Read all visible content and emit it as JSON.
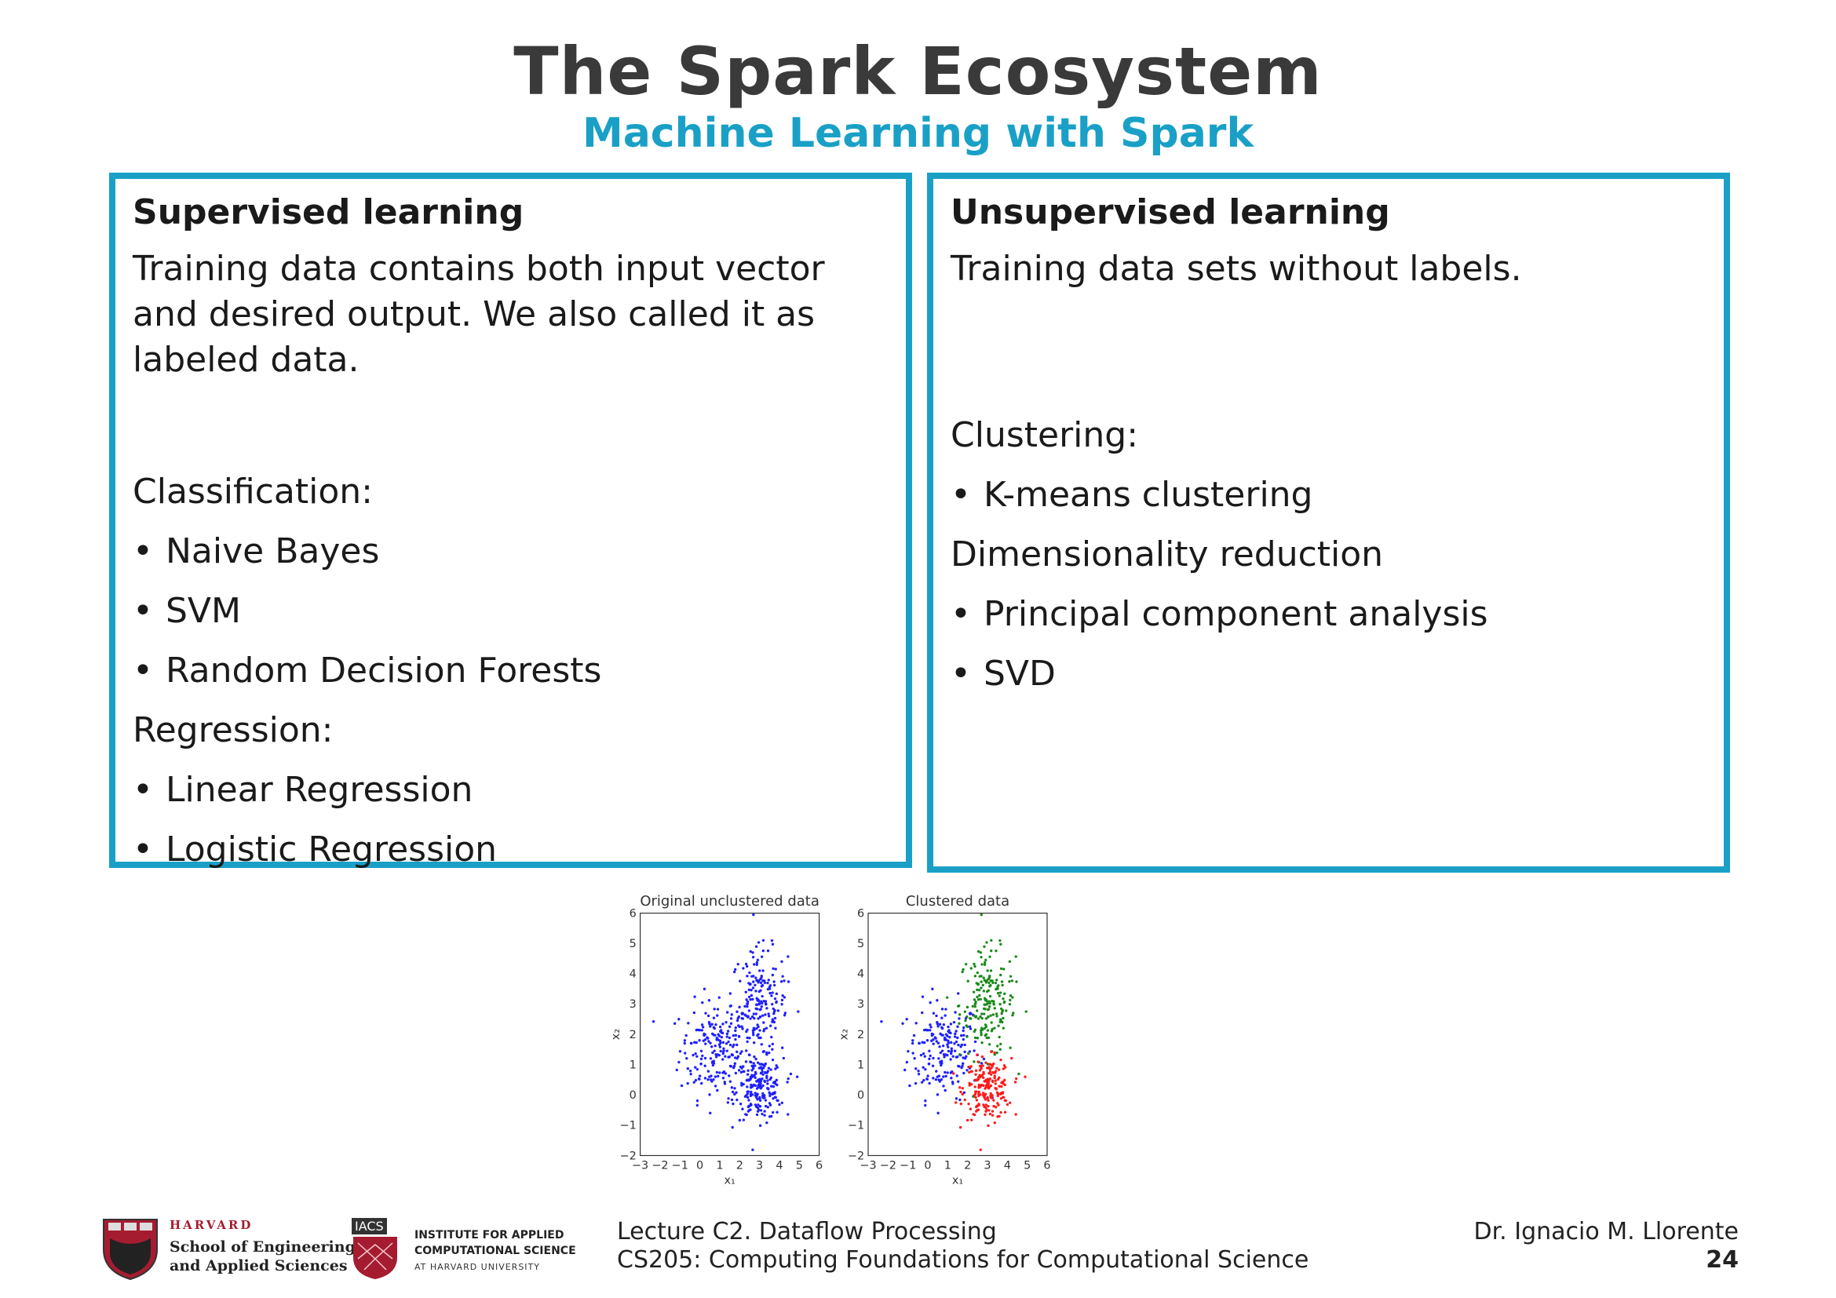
{
  "slide": {
    "title": "The Spark Ecosystem",
    "subtitle": "Machine Learning with Spark"
  },
  "supervised": {
    "heading": "Supervised learning",
    "description": "Training data contains both input vector and desired output. We also called it as labeled data.",
    "classification_label": "Classification:",
    "classification_items": [
      "Naive Bayes",
      "SVM",
      "Random Decision Forests"
    ],
    "regression_label": "Regression:",
    "regression_items": [
      "Linear Regression",
      "Logistic Regression"
    ]
  },
  "unsupervised": {
    "heading": "Unsupervised learning",
    "description": "Training data sets without labels.",
    "clustering_label": "Clustering:",
    "clustering_items": [
      "K-means clustering"
    ],
    "dimred_label": "Dimensionality reduction",
    "dimred_items": [
      "Principal component analysis",
      "SVD"
    ]
  },
  "bullet_char": "•",
  "chart_data": [
    {
      "type": "scatter",
      "title": "Original unclustered data",
      "xlabel": "x₁",
      "ylabel": "x₂",
      "xlim": [
        -3,
        6
      ],
      "ylim": [
        -2,
        6
      ],
      "xticks": [
        "−3",
        "−2",
        "−1",
        "0",
        "1",
        "2",
        "3",
        "4",
        "5",
        "6"
      ],
      "yticks": [
        "−2",
        "−1",
        "0",
        "1",
        "2",
        "3",
        "4",
        "5",
        "6"
      ],
      "clusters": [
        {
          "color": "#1f1fff",
          "center": [
            0.8,
            1.5
          ],
          "spread": [
            0.9,
            0.8
          ],
          "count": 200
        },
        {
          "color": "#1f1fff",
          "center": [
            3.0,
            3.0
          ],
          "spread": [
            0.7,
            0.9
          ],
          "count": 200
        },
        {
          "color": "#1f1fff",
          "center": [
            3.0,
            0.2
          ],
          "spread": [
            0.6,
            0.5
          ],
          "count": 200
        }
      ]
    },
    {
      "type": "scatter",
      "title": "Clustered data",
      "xlabel": "x₁",
      "ylabel": "x₂",
      "xlim": [
        -3,
        6
      ],
      "ylim": [
        -2,
        6
      ],
      "xticks": [
        "−3",
        "−2",
        "−1",
        "0",
        "1",
        "2",
        "3",
        "4",
        "5",
        "6"
      ],
      "yticks": [
        "−2",
        "−1",
        "0",
        "1",
        "2",
        "3",
        "4",
        "5",
        "6"
      ],
      "clusters": [
        {
          "color": "#1f1fff",
          "center": [
            0.8,
            1.5
          ],
          "spread": [
            0.9,
            0.8
          ],
          "count": 200
        },
        {
          "color": "#1a8a1a",
          "center": [
            3.0,
            3.0
          ],
          "spread": [
            0.7,
            0.9
          ],
          "count": 200
        },
        {
          "color": "#ff1a1a",
          "center": [
            3.0,
            0.2
          ],
          "spread": [
            0.6,
            0.5
          ],
          "count": 200
        }
      ]
    }
  ],
  "footer": {
    "harvard": "HARVARD",
    "seas_line1": "School of Engineering",
    "seas_line2": "and Applied Sciences",
    "iacs_tag": "IACS",
    "iacs_line1": "INSTITUTE FOR APPLIED",
    "iacs_line2": "COMPUTATIONAL SCIENCE",
    "iacs_line3": "AT HARVARD UNIVERSITY",
    "lecture_line1": "Lecture C2. Dataflow Processing",
    "lecture_line2": "CS205: Computing Foundations for Computational Science",
    "author": "Dr. Ignacio M. Llorente",
    "page_number": "24"
  },
  "colors": {
    "accent": "#1aa0c6",
    "harvard_crimson": "#a51c30"
  }
}
